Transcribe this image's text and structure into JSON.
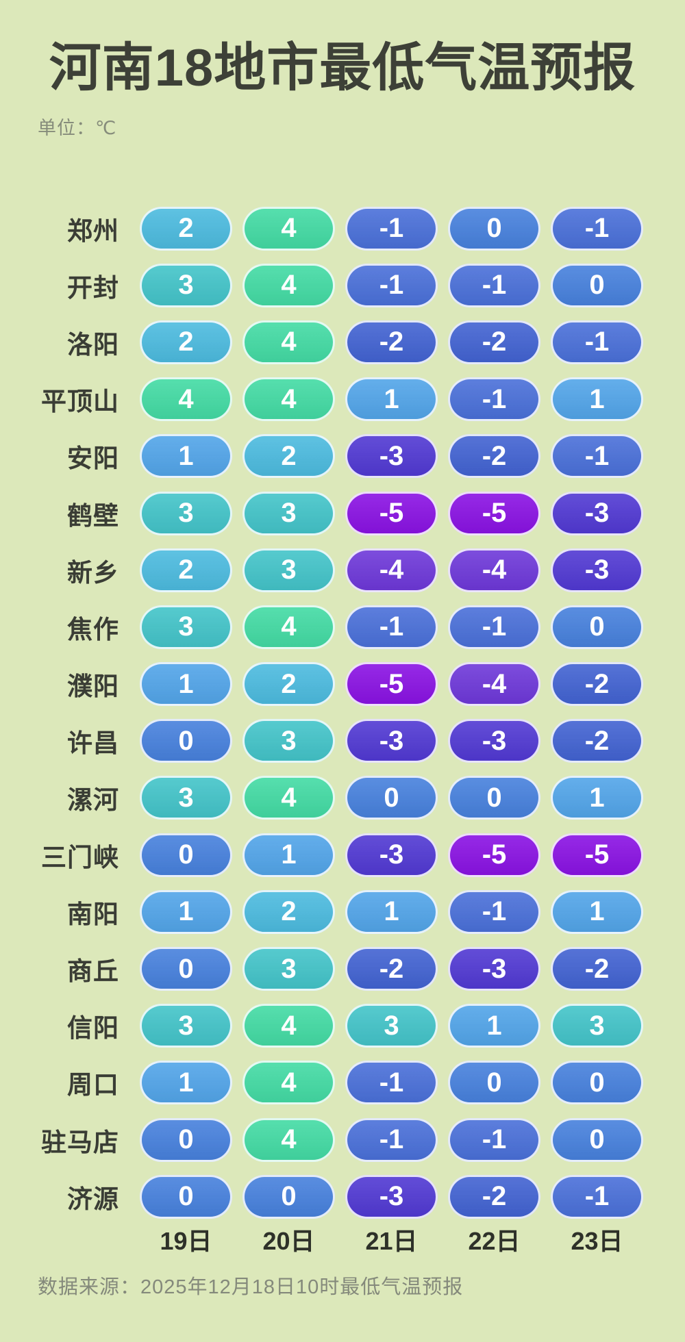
{
  "title": "河南18地市最低气温预报",
  "unit_label": "单位：℃",
  "columns": [
    "19日",
    "20日",
    "21日",
    "22日",
    "23日"
  ],
  "rows": [
    {
      "city": "郑州",
      "temps": [
        2,
        4,
        -1,
        0,
        -1
      ]
    },
    {
      "city": "开封",
      "temps": [
        3,
        4,
        -1,
        -1,
        0
      ]
    },
    {
      "city": "洛阳",
      "temps": [
        2,
        4,
        -2,
        -2,
        -1
      ]
    },
    {
      "city": "平顶山",
      "temps": [
        4,
        4,
        1,
        -1,
        1
      ]
    },
    {
      "city": "安阳",
      "temps": [
        1,
        2,
        -3,
        -2,
        -1
      ]
    },
    {
      "city": "鹤壁",
      "temps": [
        3,
        3,
        -5,
        -5,
        -3
      ]
    },
    {
      "city": "新乡",
      "temps": [
        2,
        3,
        -4,
        -4,
        -3
      ]
    },
    {
      "city": "焦作",
      "temps": [
        3,
        4,
        -1,
        -1,
        0
      ]
    },
    {
      "city": "濮阳",
      "temps": [
        1,
        2,
        -5,
        -4,
        -2
      ]
    },
    {
      "city": "许昌",
      "temps": [
        0,
        3,
        -3,
        -3,
        -2
      ]
    },
    {
      "city": "漯河",
      "temps": [
        3,
        4,
        0,
        0,
        1
      ]
    },
    {
      "city": "三门峡",
      "temps": [
        0,
        1,
        -3,
        -5,
        -5
      ]
    },
    {
      "city": "南阳",
      "temps": [
        1,
        2,
        1,
        -1,
        1
      ]
    },
    {
      "city": "商丘",
      "temps": [
        0,
        3,
        -2,
        -3,
        -2
      ]
    },
    {
      "city": "信阳",
      "temps": [
        3,
        4,
        3,
        1,
        3
      ]
    },
    {
      "city": "周口",
      "temps": [
        1,
        4,
        -1,
        0,
        0
      ]
    },
    {
      "city": "驻马店",
      "temps": [
        0,
        4,
        -1,
        -1,
        0
      ]
    },
    {
      "city": "济源",
      "temps": [
        0,
        0,
        -3,
        -2,
        -1
      ]
    }
  ],
  "footer": "数据来源：2025年12月18日10时最低气温预报",
  "colors": {
    "background": "#dce8ba",
    "title_text": "#3d4037",
    "label_text": "#3a3d35",
    "muted_text": "#84897b",
    "pill_text": "#ffffff",
    "temp_scale": {
      "4": "#43dba4",
      "3": "#43c4c9",
      "2": "#4cbbdf",
      "1": "#52a5e9",
      "0": "#4781dd",
      "-1": "#4a70d9",
      "-2": "#4263d2",
      "-3": "#5139d3",
      "-4": "#6e38d9",
      "-5": "#8a12e3"
    }
  },
  "chart_data": {
    "type": "heatmap",
    "title": "河南18地市最低气温预报",
    "unit": "℃",
    "x_categories": [
      "19日",
      "20日",
      "21日",
      "22日",
      "23日"
    ],
    "y_categories": [
      "郑州",
      "开封",
      "洛阳",
      "平顶山",
      "安阳",
      "鹤壁",
      "新乡",
      "焦作",
      "濮阳",
      "许昌",
      "漯河",
      "三门峡",
      "南阳",
      "商丘",
      "信阳",
      "周口",
      "驻马店",
      "济源"
    ],
    "values": [
      [
        2,
        4,
        -1,
        0,
        -1
      ],
      [
        3,
        4,
        -1,
        -1,
        0
      ],
      [
        2,
        4,
        -2,
        -2,
        -1
      ],
      [
        4,
        4,
        1,
        -1,
        1
      ],
      [
        1,
        2,
        -3,
        -2,
        -1
      ],
      [
        3,
        3,
        -5,
        -5,
        -3
      ],
      [
        2,
        3,
        -4,
        -4,
        -3
      ],
      [
        3,
        4,
        -1,
        -1,
        0
      ],
      [
        1,
        2,
        -5,
        -4,
        -2
      ],
      [
        0,
        3,
        -3,
        -3,
        -2
      ],
      [
        3,
        4,
        0,
        0,
        1
      ],
      [
        0,
        1,
        -3,
        -5,
        -5
      ],
      [
        1,
        2,
        1,
        -1,
        1
      ],
      [
        0,
        3,
        -2,
        -3,
        -2
      ],
      [
        3,
        4,
        3,
        1,
        3
      ],
      [
        1,
        4,
        -1,
        0,
        0
      ],
      [
        0,
        4,
        -1,
        -1,
        0
      ],
      [
        0,
        0,
        -3,
        -2,
        -1
      ]
    ],
    "value_range": [
      -5,
      4
    ],
    "color_scale_note": "warm teal/green for positive temps through blue to violet for coldest",
    "source": "数据来源：2025年12月18日10时最低气温预报"
  }
}
